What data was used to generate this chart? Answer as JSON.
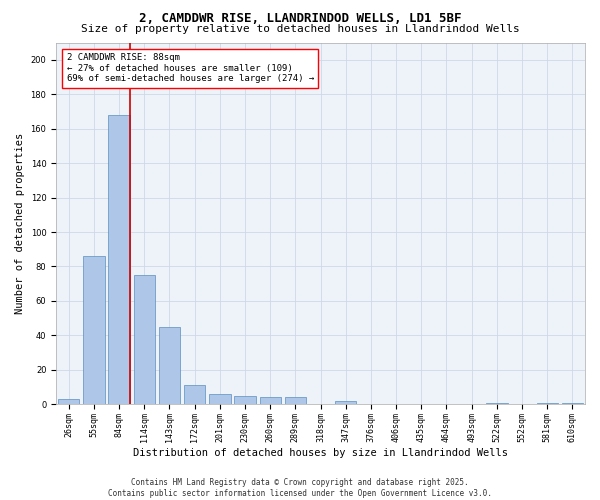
{
  "title_line1": "2, CAMDDWR RISE, LLANDRINDOD WELLS, LD1 5BF",
  "title_line2": "Size of property relative to detached houses in Llandrindod Wells",
  "xlabel": "Distribution of detached houses by size in Llandrindod Wells",
  "ylabel": "Number of detached properties",
  "categories": [
    "26sqm",
    "55sqm",
    "84sqm",
    "114sqm",
    "143sqm",
    "172sqm",
    "201sqm",
    "230sqm",
    "260sqm",
    "289sqm",
    "318sqm",
    "347sqm",
    "376sqm",
    "406sqm",
    "435sqm",
    "464sqm",
    "493sqm",
    "522sqm",
    "552sqm",
    "581sqm",
    "610sqm"
  ],
  "values": [
    3,
    86,
    168,
    75,
    45,
    11,
    6,
    5,
    4,
    4,
    0,
    2,
    0,
    0,
    0,
    0,
    0,
    1,
    0,
    1,
    1
  ],
  "bar_color": "#aec6e8",
  "bar_edge_color": "#5a8fc0",
  "grid_color": "#d0d8e8",
  "bg_color": "#eef2f9",
  "vline_color": "#cc0000",
  "vline_pos": 2.43,
  "annotation_text": "2 CAMDDWR RISE: 88sqm\n← 27% of detached houses are smaller (109)\n69% of semi-detached houses are larger (274) →",
  "ylim": [
    0,
    210
  ],
  "yticks": [
    0,
    20,
    40,
    60,
    80,
    100,
    120,
    140,
    160,
    180,
    200
  ],
  "footer": "Contains HM Land Registry data © Crown copyright and database right 2025.\nContains public sector information licensed under the Open Government Licence v3.0.",
  "title_fontsize": 9,
  "subtitle_fontsize": 8,
  "axis_label_fontsize": 7.5,
  "tick_fontsize": 6,
  "annotation_fontsize": 6.5,
  "ylabel_fontsize": 7.5,
  "footer_fontsize": 5.5
}
